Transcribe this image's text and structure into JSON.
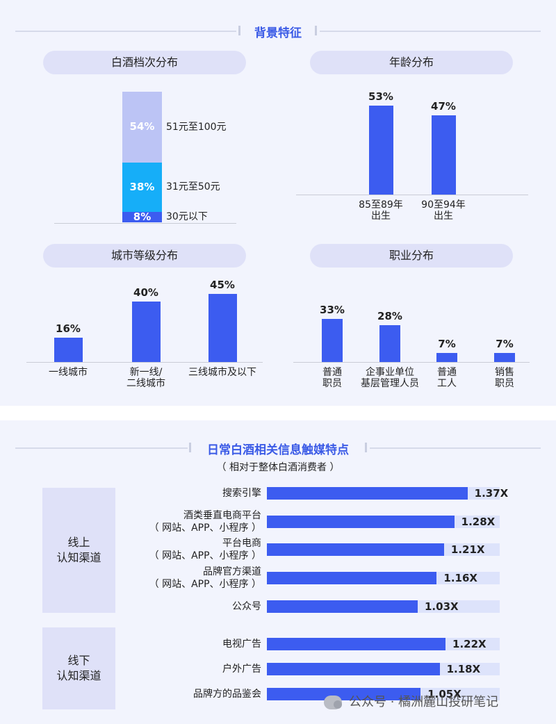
{
  "section1": {
    "title": "背景特征"
  },
  "section2": {
    "title": "日常白酒相关信息触媒特点",
    "subtitle": "（ 相对于整体白酒消费者 ）"
  },
  "chart_data": [
    {
      "type": "bar",
      "subtype": "stacked-100",
      "title": "白酒档次分布",
      "segments": [
        {
          "label": "30元以下",
          "value": 8,
          "display": "8%",
          "color": "#3c5cf0"
        },
        {
          "label": "31元至50元",
          "value": 38,
          "display": "38%",
          "color": "#16aef8"
        },
        {
          "label": "51元至100元",
          "value": 54,
          "display": "54%",
          "color": "#bcc4f5"
        }
      ]
    },
    {
      "type": "bar",
      "title": "年龄分布",
      "categories": [
        "85至89年\n出生",
        "90至94年\n出生"
      ],
      "values": [
        53,
        47
      ],
      "display": [
        "53%",
        "47%"
      ]
    },
    {
      "type": "bar",
      "title": "城市等级分布",
      "categories": [
        "一线城市",
        "新一线/\n二线城市",
        "三线城市及以下"
      ],
      "values": [
        16,
        40,
        45
      ],
      "display": [
        "16%",
        "40%",
        "45%"
      ]
    },
    {
      "type": "bar",
      "title": "职业分布",
      "categories": [
        "普通\n职员",
        "企事业单位\n基层管理人员",
        "普通\n工人",
        "销售\n职员"
      ],
      "values": [
        33,
        28,
        7,
        7
      ],
      "display": [
        "33%",
        "28%",
        "7%",
        "7%"
      ]
    },
    {
      "type": "bar",
      "orientation": "horizontal",
      "groups": [
        {
          "name": "线上\n认知渠道",
          "items": [
            {
              "label": "搜索引擎",
              "value": 1.37,
              "display": "1.37X"
            },
            {
              "label": "酒类垂直电商平台\n（ 网站、APP、小程序 ）",
              "value": 1.28,
              "display": "1.28X"
            },
            {
              "label": "平台电商\n（ 网站、APP、小程序 ）",
              "value": 1.21,
              "display": "1.21X"
            },
            {
              "label": "品牌官方渠道\n（ 网站、APP、小程序 ）",
              "value": 1.16,
              "display": "1.16X"
            },
            {
              "label": "公众号",
              "value": 1.03,
              "display": "1.03X"
            }
          ]
        },
        {
          "name": "线下\n认知渠道",
          "items": [
            {
              "label": "电视广告",
              "value": 1.22,
              "display": "1.22X"
            },
            {
              "label": "户外广告",
              "value": 1.18,
              "display": "1.18X"
            },
            {
              "label": "品牌方的品鉴会",
              "value": 1.05,
              "display": "1.05X"
            }
          ]
        }
      ]
    }
  ],
  "watermark": "公众号 · 橘洲麓山投研笔记"
}
